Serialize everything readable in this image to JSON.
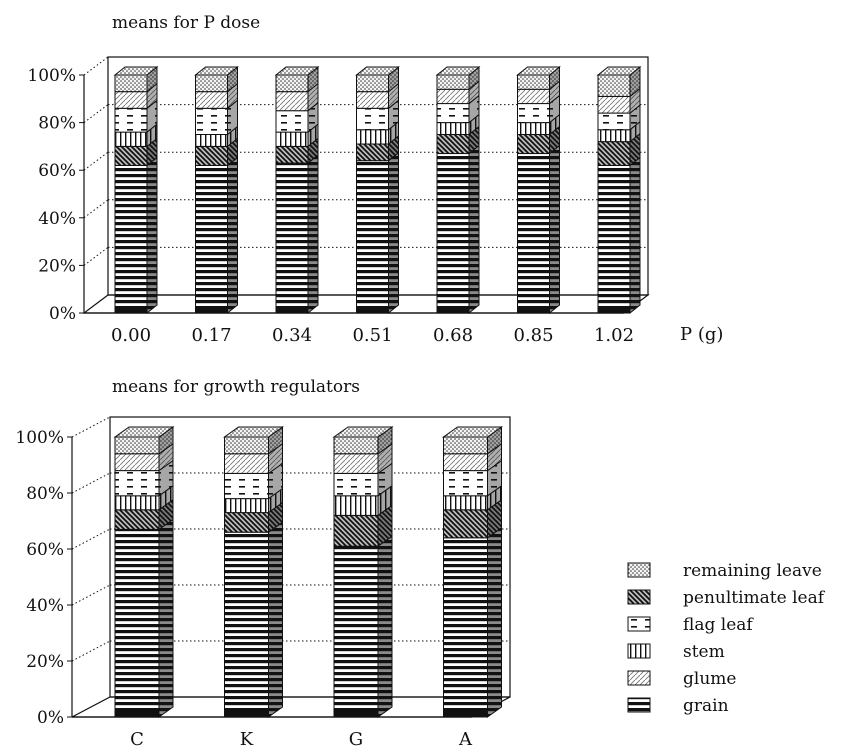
{
  "chart_data": [
    {
      "type": "bar",
      "stacked": "percent",
      "title": "means for P dose",
      "xlabel": "P (g)",
      "ylabel": "",
      "ylim": [
        0,
        100
      ],
      "yticks": [
        "0%",
        "20%",
        "40%",
        "60%",
        "80%",
        "100%"
      ],
      "categories": [
        "0.00",
        "0.17",
        "0.34",
        "0.51",
        "0.68",
        "0.85",
        "1.02"
      ],
      "series": [
        {
          "name": "grain",
          "values": [
            62,
            62,
            63,
            64,
            67,
            67,
            62
          ]
        },
        {
          "name": "penultimate leaf",
          "values": [
            8,
            8,
            7,
            7,
            8,
            8,
            10
          ]
        },
        {
          "name": "stem",
          "values": [
            6,
            5,
            6,
            6,
            5,
            5,
            5
          ]
        },
        {
          "name": "flag leaf",
          "values": [
            10,
            11,
            9,
            9,
            8,
            8,
            7
          ]
        },
        {
          "name": "glume",
          "values": [
            7,
            7,
            8,
            7,
            6,
            6,
            7
          ]
        },
        {
          "name": "remaining leave",
          "values": [
            7,
            7,
            7,
            7,
            6,
            6,
            9
          ]
        }
      ],
      "gridlines": true
    },
    {
      "type": "bar",
      "stacked": "percent",
      "title": "means for growth regulators",
      "xlabel": "",
      "ylabel": "",
      "ylim": [
        0,
        100
      ],
      "yticks": [
        "0%",
        "20%",
        "40%",
        "60%",
        "80%",
        "100%"
      ],
      "categories": [
        "C",
        "K",
        "G",
        "A"
      ],
      "series": [
        {
          "name": "grain",
          "values": [
            67,
            66,
            61,
            64
          ]
        },
        {
          "name": "penultimate leaf",
          "values": [
            7,
            7,
            11,
            10
          ]
        },
        {
          "name": "stem",
          "values": [
            5,
            5,
            7,
            5
          ]
        },
        {
          "name": "flag leaf",
          "values": [
            9,
            9,
            8,
            9
          ]
        },
        {
          "name": "glume",
          "values": [
            6,
            7,
            7,
            6
          ]
        },
        {
          "name": "remaining leave",
          "values": [
            6,
            6,
            6,
            6
          ]
        }
      ],
      "gridlines": true
    }
  ],
  "legend": {
    "placement": "bottom-right",
    "entries": [
      {
        "name": "remaining leave",
        "pattern": "dots"
      },
      {
        "name": "penultimate leaf",
        "pattern": "dark-diagonal"
      },
      {
        "name": "flag leaf",
        "pattern": "dashes"
      },
      {
        "name": "stem",
        "pattern": "vertical"
      },
      {
        "name": "glume",
        "pattern": "light-diagonal"
      },
      {
        "name": "grain",
        "pattern": "horizontal"
      }
    ]
  }
}
